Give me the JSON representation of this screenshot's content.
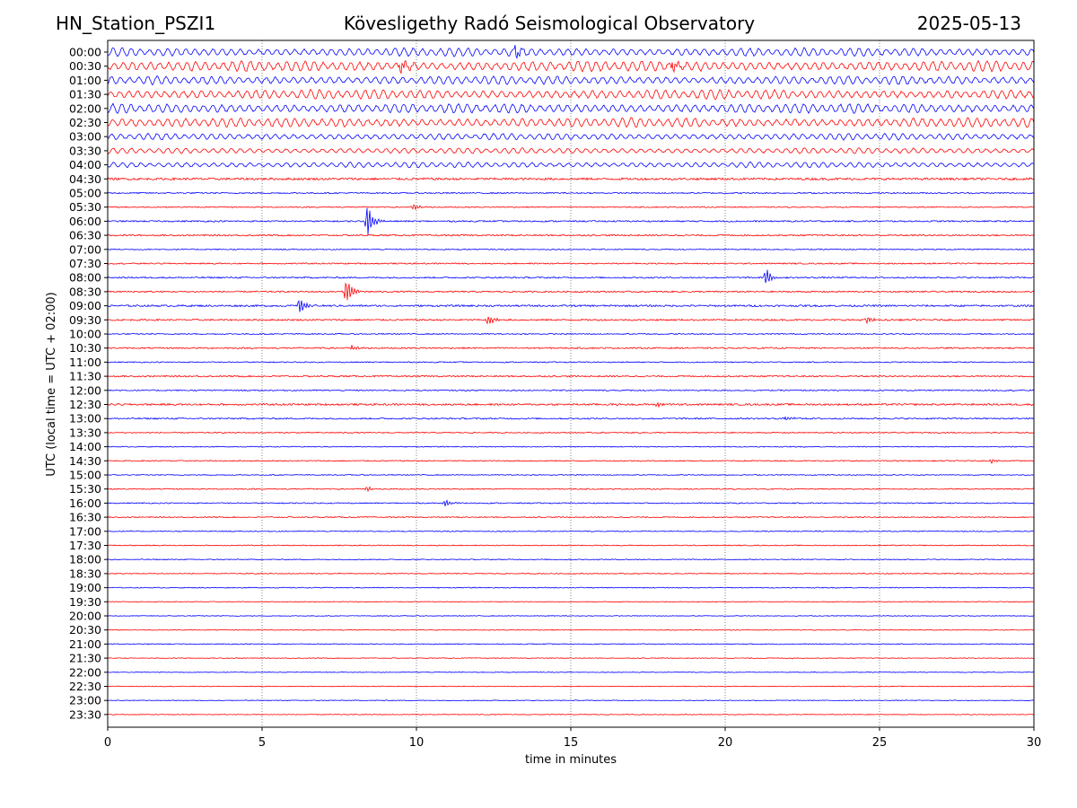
{
  "header": {
    "station": "HN_Station_PSZI1",
    "observatory": "Kövesligethy Radó Seismological Observatory",
    "date": "2025-05-13"
  },
  "chart_data": {
    "type": "line",
    "subtype": "helicorder",
    "xlabel": "time in minutes",
    "ylabel": "UTC (local time = UTC + 02:00)",
    "xlim": [
      0,
      30
    ],
    "xticks": [
      0,
      5,
      10,
      15,
      20,
      25,
      30
    ],
    "grid": "vertical dotted lines at 5-minute intervals",
    "colors": {
      "even_rows": "#0000ff",
      "odd_rows": "#ff0000"
    },
    "rows": [
      "00:00",
      "00:30",
      "01:00",
      "01:30",
      "02:00",
      "02:30",
      "03:00",
      "03:30",
      "04:00",
      "04:30",
      "05:00",
      "05:30",
      "06:00",
      "06:30",
      "07:00",
      "07:30",
      "08:00",
      "08:30",
      "09:00",
      "09:30",
      "10:00",
      "10:30",
      "11:00",
      "11:30",
      "12:00",
      "12:30",
      "13:00",
      "13:30",
      "14:00",
      "14:30",
      "15:00",
      "15:30",
      "16:00",
      "16:30",
      "17:00",
      "17:30",
      "18:00",
      "18:30",
      "19:00",
      "19:30",
      "20:00",
      "20:30",
      "21:00",
      "21:30",
      "22:00",
      "22:30",
      "23:00",
      "23:30"
    ],
    "background_noise_amplitude_by_row": [
      4.5,
      5.5,
      4.5,
      5.0,
      5.0,
      5.0,
      3.5,
      3.0,
      3.0,
      1.2,
      0.7,
      0.6,
      0.8,
      0.8,
      0.6,
      0.7,
      0.8,
      0.8,
      1.0,
      0.9,
      0.6,
      0.8,
      0.6,
      0.8,
      0.7,
      1.0,
      0.8,
      0.6,
      0.5,
      0.6,
      0.5,
      0.6,
      0.6,
      0.6,
      0.5,
      0.5,
      0.5,
      0.5,
      0.5,
      0.4,
      0.4,
      0.4,
      0.5,
      0.4,
      0.4,
      0.4,
      0.4,
      0.4
    ],
    "events": [
      {
        "row": "00:00",
        "minute": 13.2,
        "amplitude": 9
      },
      {
        "row": "00:30",
        "minute": 9.5,
        "amplitude": 10
      },
      {
        "row": "00:30",
        "minute": 18.3,
        "amplitude": 10
      },
      {
        "row": "05:30",
        "minute": 9.9,
        "amplitude": 5
      },
      {
        "row": "06:00",
        "minute": 8.4,
        "amplitude": 24
      },
      {
        "row": "08:00",
        "minute": 21.3,
        "amplitude": 14
      },
      {
        "row": "08:30",
        "minute": 7.7,
        "amplitude": 24
      },
      {
        "row": "09:00",
        "minute": 6.2,
        "amplitude": 14
      },
      {
        "row": "09:30",
        "minute": 12.3,
        "amplitude": 7
      },
      {
        "row": "09:30",
        "minute": 24.6,
        "amplitude": 6
      },
      {
        "row": "10:30",
        "minute": 7.9,
        "amplitude": 4
      },
      {
        "row": "12:30",
        "minute": 17.8,
        "amplitude": 3
      },
      {
        "row": "13:00",
        "minute": 22.0,
        "amplitude": 4
      },
      {
        "row": "14:30",
        "minute": 28.6,
        "amplitude": 4
      },
      {
        "row": "15:30",
        "minute": 8.4,
        "amplitude": 4
      },
      {
        "row": "16:00",
        "minute": 10.9,
        "amplitude": 5
      }
    ]
  }
}
